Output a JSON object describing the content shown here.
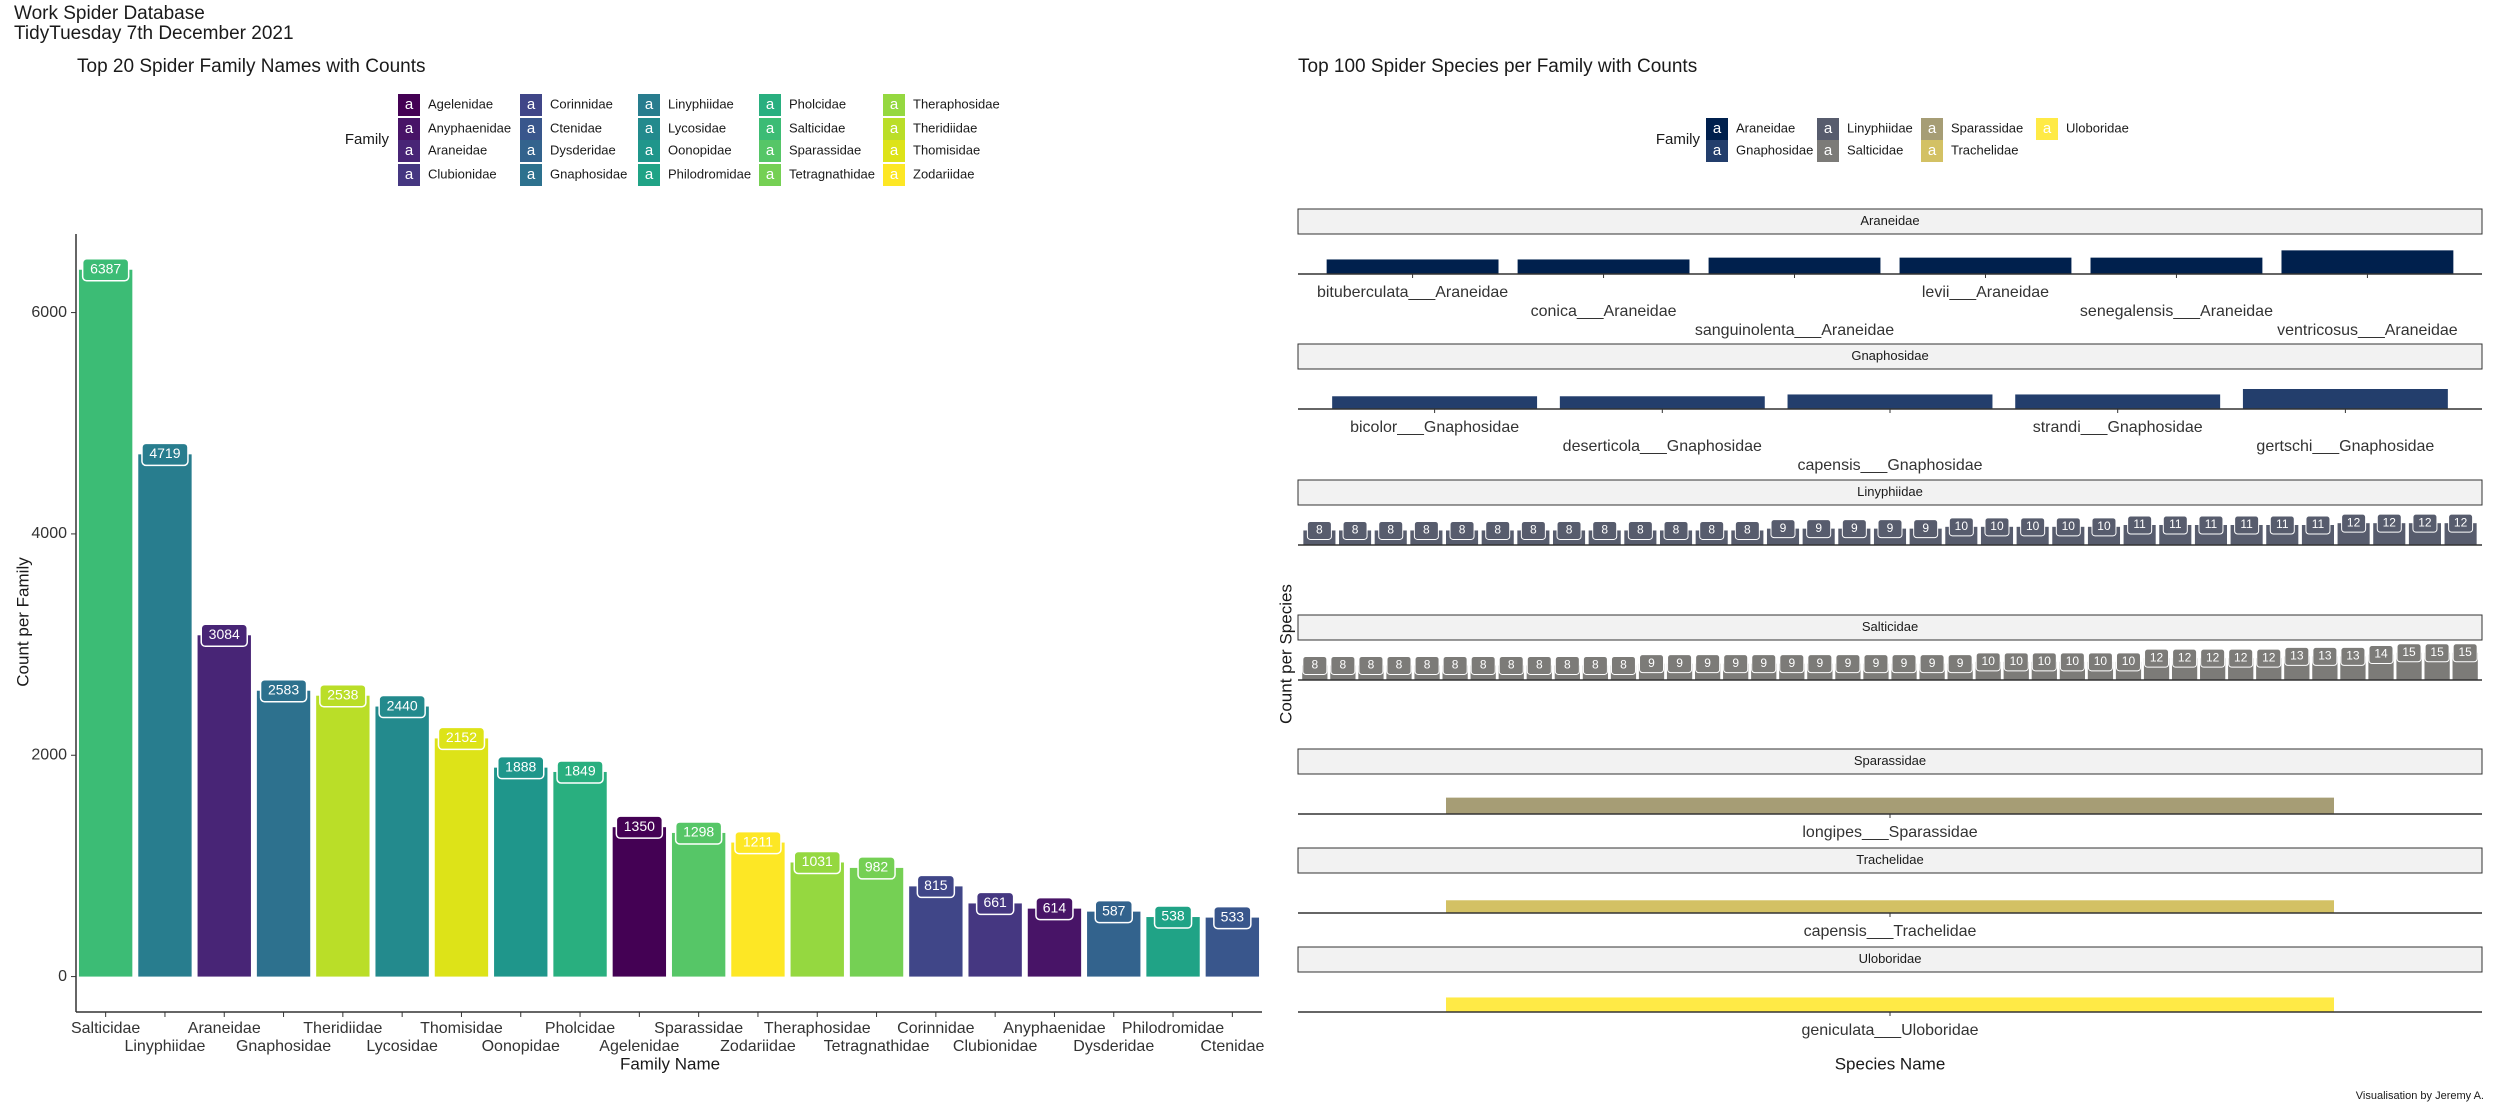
{
  "header": {
    "title": "Work Spider Database",
    "subtitle": "TidyTuesday 7th December 2021"
  },
  "chart_data": [
    {
      "type": "bar",
      "title": "Top 20 Spider Family Names with Counts",
      "xlabel": "Family Name",
      "ylabel": "Count per Family",
      "legend_title": "Family",
      "legend_key_text": "a",
      "legend": [
        {
          "name": "Agelenidae",
          "color": "#440154"
        },
        {
          "name": "Anyphaenidae",
          "color": "#481467"
        },
        {
          "name": "Araneidae",
          "color": "#482576"
        },
        {
          "name": "Clubionidae",
          "color": "#453781"
        },
        {
          "name": "Corinnidae",
          "color": "#404688"
        },
        {
          "name": "Ctenidae",
          "color": "#39568C"
        },
        {
          "name": "Dysderidae",
          "color": "#33638D"
        },
        {
          "name": "Gnaphosidae",
          "color": "#2D718E"
        },
        {
          "name": "Linyphiidae",
          "color": "#287D8E"
        },
        {
          "name": "Lycosidae",
          "color": "#238A8D"
        },
        {
          "name": "Oonopidae",
          "color": "#1F968B"
        },
        {
          "name": "Philodromidae",
          "color": "#20A386"
        },
        {
          "name": "Pholcidae",
          "color": "#29AF7F"
        },
        {
          "name": "Salticidae",
          "color": "#3CBC75"
        },
        {
          "name": "Sparassidae",
          "color": "#56C667"
        },
        {
          "name": "Tetragnathidae",
          "color": "#75D054"
        },
        {
          "name": "Theraphosidae",
          "color": "#95D840"
        },
        {
          "name": "Theridiidae",
          "color": "#BADE28"
        },
        {
          "name": "Thomisidae",
          "color": "#DDE318"
        },
        {
          "name": "Zodariidae",
          "color": "#FDE725"
        }
      ],
      "categories": [
        "Salticidae",
        "Linyphiidae",
        "Araneidae",
        "Gnaphosidae",
        "Theridiidae",
        "Lycosidae",
        "Thomisidae",
        "Oonopidae",
        "Pholcidae",
        "Agelenidae",
        "Sparassidae",
        "Zodariidae",
        "Theraphosidae",
        "Tetragnathidae",
        "Corinnidae",
        "Clubionidae",
        "Anyphaenidae",
        "Dysderidae",
        "Philodromidae",
        "Ctenidae"
      ],
      "values": [
        6387,
        4719,
        3084,
        2583,
        2538,
        2440,
        2152,
        1888,
        1849,
        1350,
        1298,
        1211,
        1031,
        982,
        815,
        661,
        614,
        587,
        538,
        533
      ],
      "ylim": [
        -320,
        6710
      ],
      "yticks": [
        0,
        2000,
        4000,
        6000
      ]
    },
    {
      "type": "facet-bar",
      "title": "Top 100 Spider Species per Family with Counts",
      "xlabel": "Species Name",
      "ylabel": "Count per Species",
      "legend_title": "Family",
      "legend_key_text": "a",
      "ylim": [
        0,
        22
      ],
      "facets": [
        {
          "name": "Araneidae",
          "color": "#00204D",
          "labels": false,
          "categories": [
            "bituberculata___Araneidae",
            "conica___Araneidae",
            "sanguinolenta___Araneidae",
            "levii___Araneidae",
            "senegalensis___Araneidae",
            "ventricosus___Araneidae"
          ],
          "values": [
            8,
            8,
            9,
            9,
            9,
            13
          ]
        },
        {
          "name": "Gnaphosidae",
          "color": "#233E6C",
          "labels": false,
          "categories": [
            "bicolor___Gnaphosidae",
            "deserticola___Gnaphosidae",
            "capensis___Gnaphosidae",
            "strandi___Gnaphosidae",
            "gertschi___Gnaphosidae"
          ],
          "values": [
            7,
            7,
            8,
            8,
            11
          ]
        },
        {
          "name": "Linyphiidae",
          "color": "#575C6D",
          "labels": true,
          "categories": [
            null,
            null,
            null,
            null,
            null,
            null,
            null,
            null,
            null,
            null,
            null,
            null,
            null,
            null,
            null,
            null,
            null,
            null,
            null,
            null,
            null,
            null,
            null,
            null,
            null,
            null,
            null,
            null,
            null,
            null,
            null,
            null,
            null
          ],
          "values": [
            8,
            8,
            8,
            8,
            8,
            8,
            8,
            8,
            8,
            8,
            8,
            8,
            8,
            9,
            9,
            9,
            9,
            9,
            10,
            10,
            10,
            10,
            10,
            11,
            11,
            11,
            11,
            11,
            11,
            12,
            12,
            12,
            12
          ]
        },
        {
          "name": "Salticidae",
          "color": "#7C7B78",
          "labels": true,
          "categories": [
            null,
            null,
            null,
            null,
            null,
            null,
            null,
            null,
            null,
            null,
            null,
            null,
            null,
            null,
            null,
            null,
            null,
            null,
            null,
            null,
            null,
            null,
            null,
            null,
            null,
            null,
            null,
            null,
            null,
            null,
            null,
            null,
            null,
            null,
            null,
            null,
            null,
            null,
            null,
            null,
            null,
            null
          ],
          "values": [
            8,
            8,
            8,
            8,
            8,
            8,
            8,
            8,
            8,
            8,
            8,
            8,
            9,
            9,
            9,
            9,
            9,
            9,
            9,
            9,
            9,
            9,
            9,
            9,
            10,
            10,
            10,
            10,
            10,
            10,
            12,
            12,
            12,
            12,
            12,
            13,
            13,
            13,
            14,
            15,
            15,
            15
          ]
        },
        {
          "name": "Sparassidae",
          "color": "#A69D75",
          "labels": false,
          "categories": [
            "longipes___Sparassidae"
          ],
          "values": [
            9
          ]
        },
        {
          "name": "Trachelidae",
          "color": "#D3C164",
          "labels": false,
          "categories": [
            "capensis___Trachelidae"
          ],
          "values": [
            7
          ]
        },
        {
          "name": "Uloboridae",
          "color": "#FFEA46",
          "labels": false,
          "categories": [
            "geniculata___Uloboridae"
          ],
          "values": [
            8
          ]
        }
      ]
    }
  ],
  "caption": "Visualisation by Jeremy A."
}
